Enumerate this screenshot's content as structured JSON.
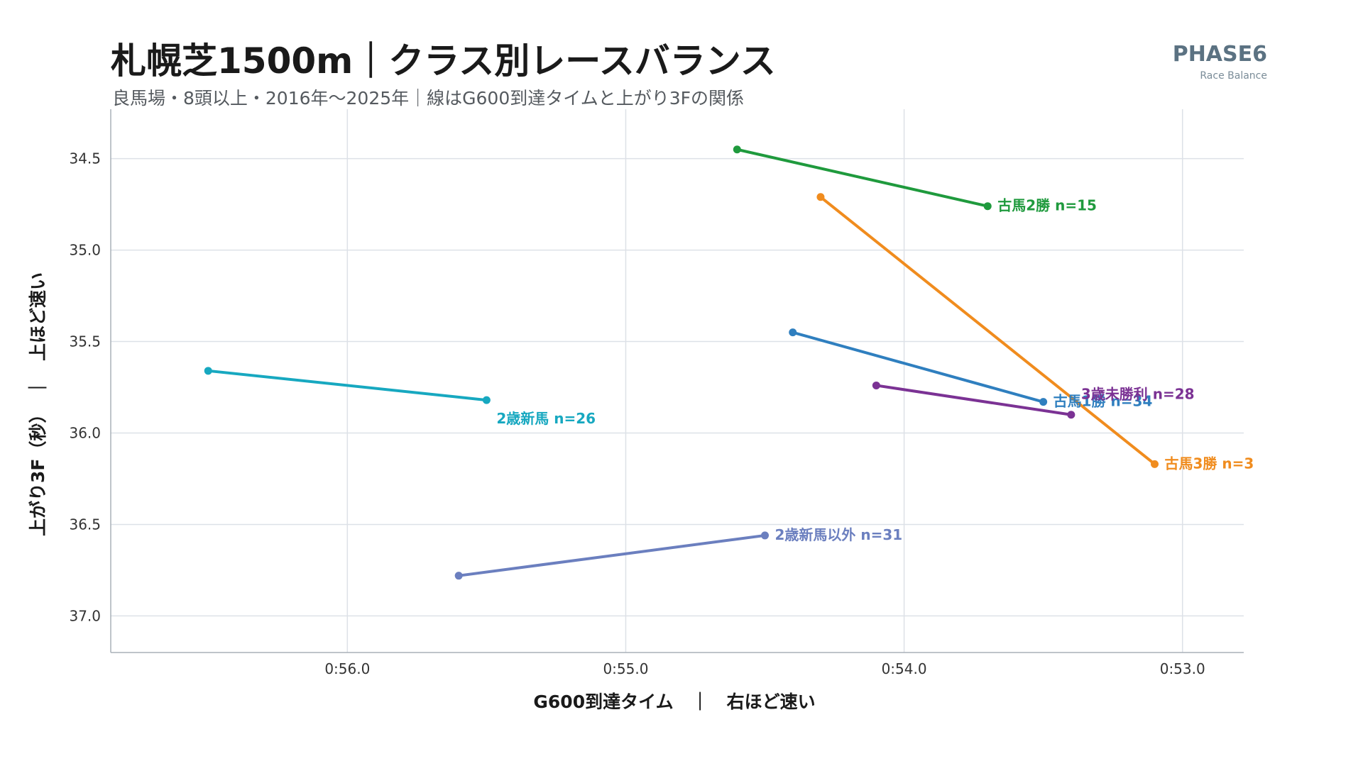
{
  "header": {
    "title": "札幌芝1500m｜クラス別レースバランス",
    "subtitle": "良馬場・8頭以上・2016年〜2025年｜線はG600到達タイムと上がり3Fの関係",
    "brand_name": "PHASE6",
    "brand_sub": "Race Balance"
  },
  "chart_data": {
    "type": "line",
    "xlabel": "G600到達タイム　｜　右ほど速い",
    "ylabel": "上がり3F（秒）　｜　上ほど速い",
    "x_unit": "seconds",
    "x_reversed": true,
    "y_reversed": true,
    "xlim": [
      56.85,
      52.78
    ],
    "ylim": [
      34.23,
      37.2
    ],
    "x_ticks": [
      56.0,
      55.0,
      54.0,
      53.0
    ],
    "x_tick_labels": [
      "0:56.0",
      "0:55.0",
      "0:54.0",
      "0:53.0"
    ],
    "y_ticks": [
      34.5,
      35.0,
      35.5,
      36.0,
      36.5,
      37.0
    ],
    "y_tick_labels": [
      "34.5",
      "35.0",
      "35.5",
      "36.0",
      "36.5",
      "37.0"
    ],
    "grid": true,
    "series": [
      {
        "name": "古馬2勝",
        "label": "古馬2勝  n=15",
        "color": "#1f9a3d",
        "points": [
          [
            54.6,
            34.45
          ],
          [
            53.7,
            34.76
          ]
        ]
      },
      {
        "name": "古馬3勝",
        "label": "古馬3勝  n=3",
        "color": "#f08c1e",
        "points": [
          [
            54.3,
            34.71
          ],
          [
            53.1,
            36.17
          ]
        ]
      },
      {
        "name": "古馬1勝",
        "label": "古馬1勝  n=34",
        "color": "#2f7fbf",
        "points": [
          [
            54.4,
            35.45
          ],
          [
            53.5,
            35.83
          ]
        ]
      },
      {
        "name": "3歳未勝利",
        "label": "3歳未勝利  n=28",
        "color": "#7b3294",
        "points": [
          [
            54.1,
            35.74
          ],
          [
            53.4,
            35.9
          ]
        ]
      },
      {
        "name": "2歳新馬",
        "label": "2歳新馬  n=26",
        "color": "#17a8c0",
        "points": [
          [
            56.5,
            35.66
          ],
          [
            55.5,
            35.82
          ]
        ]
      },
      {
        "name": "2歳新馬以外",
        "label": "2歳新馬以外  n=31",
        "color": "#6b7fbf",
        "points": [
          [
            55.6,
            36.78
          ],
          [
            54.5,
            36.56
          ]
        ]
      }
    ]
  }
}
